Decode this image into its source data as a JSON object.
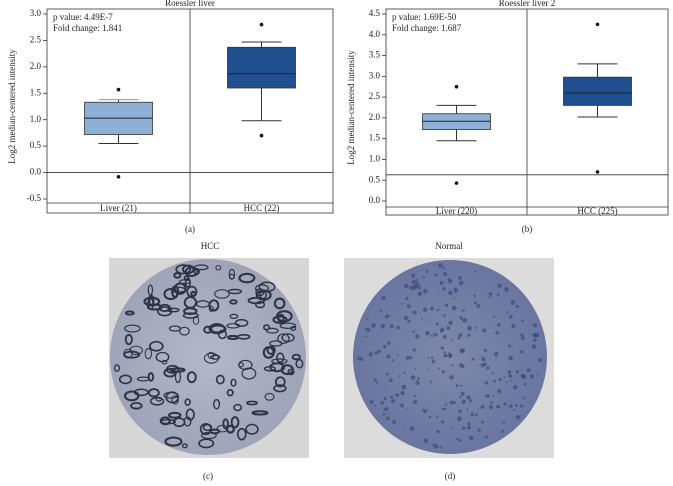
{
  "chart_data": [
    {
      "type": "box",
      "title": "Roessler liver",
      "ylabel": "Log2 median-centered intensity",
      "annotations": [
        "p value: 4.49E-7",
        "Fold change: 1.841"
      ],
      "categories": [
        "Liver (21)",
        "HCC (22)"
      ],
      "colors": [
        "#8eb0d6",
        "#1f4f8f"
      ],
      "boxes": [
        {
          "whisker_low": 0.55,
          "q1": 0.72,
          "median": 1.03,
          "q3": 1.33,
          "whisker_high": 1.38,
          "outliers": [
            1.57,
            -0.08
          ]
        },
        {
          "whisker_low": 0.98,
          "q1": 1.6,
          "median": 1.87,
          "q3": 2.37,
          "whisker_high": 2.47,
          "outliers": [
            2.8,
            0.7
          ]
        }
      ],
      "reference_line": 0,
      "ylim": [
        -0.5,
        3.0
      ],
      "yticks": [
        -0.5,
        {
          "value": 0,
          "label": "0.0"
        },
        0.5,
        {
          "value": 1,
          "label": "1.0"
        },
        1.5,
        {
          "value": 2,
          "label": "2.0"
        },
        2.5,
        {
          "value": 3,
          "label": "3.0"
        }
      ]
    },
    {
      "type": "box",
      "title": "Roessler liver 2",
      "ylabel": "Log2 median-centered intensity",
      "annotations": [
        "p value: 1.69E-50",
        "Fold change: 1.687"
      ],
      "categories": [
        "Liver (220)",
        "HCC (225)"
      ],
      "colors": [
        "#8eb0d6",
        "#1f4f8f"
      ],
      "boxes": [
        {
          "whisker_low": 1.45,
          "q1": 1.72,
          "median": 1.92,
          "q3": 2.1,
          "whisker_high": 2.3,
          "outliers": [
            2.75,
            0.43
          ]
        },
        {
          "whisker_low": 2.02,
          "q1": 2.3,
          "median": 2.6,
          "q3": 2.98,
          "whisker_high": 3.3,
          "outliers": [
            4.25,
            0.7
          ]
        }
      ],
      "reference_line": 0.63,
      "ylim": [
        0,
        4.5
      ],
      "yticks": [
        {
          "value": 0,
          "label": "0.0"
        },
        0.5,
        {
          "value": 1,
          "label": "1.0"
        },
        1.5,
        {
          "value": 2,
          "label": "2.0"
        },
        2.5,
        {
          "value": 3,
          "label": "3.0"
        },
        3.5,
        {
          "value": 4,
          "label": "4.0"
        },
        4.5
      ]
    }
  ],
  "images": [
    {
      "title": "HCC"
    },
    {
      "title": "Normal"
    }
  ],
  "panel_labels": [
    "(a)",
    "(b)",
    "(c)",
    "(d)"
  ]
}
